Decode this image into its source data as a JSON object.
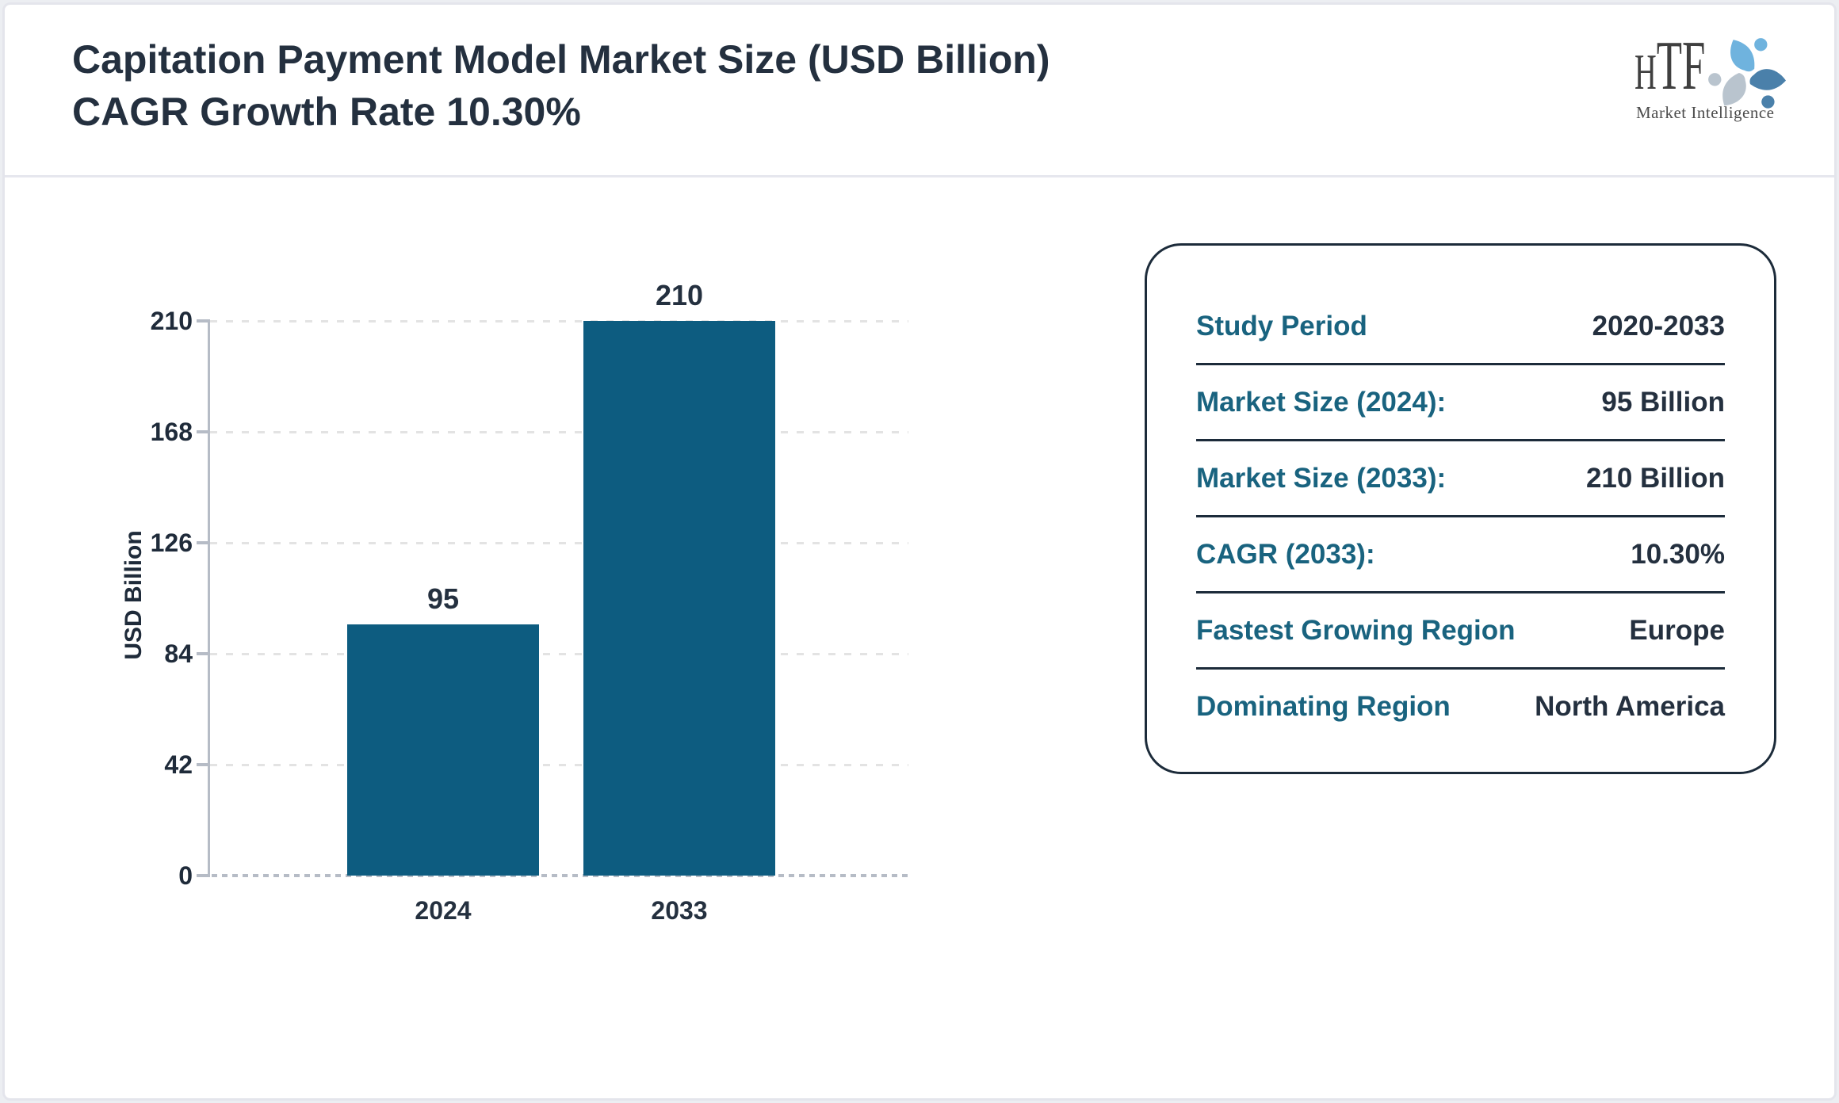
{
  "header": {
    "title": "Capitation Payment Model Market Size (USD Billion) CAGR Growth Rate 10.30%"
  },
  "logo": {
    "text": "HTF",
    "subtext": "Market Intelligence",
    "colors": {
      "figure_top": "#6fb3de",
      "figure_right": "#4a80aa",
      "figure_left": "#b9c4ce",
      "text": "#3f3f3f"
    }
  },
  "chart_data": {
    "type": "bar",
    "categories": [
      "2024",
      "2033"
    ],
    "values": [
      95,
      210
    ],
    "data_labels": [
      "95",
      "210"
    ],
    "title": "",
    "xlabel": "",
    "ylabel": "USD Billion",
    "ylim": [
      0,
      210
    ],
    "yticks": [
      0,
      42,
      84,
      126,
      168,
      210
    ],
    "grid": "horizontal-dashed",
    "legend": "none",
    "bar_color": "#0d5c80"
  },
  "info_panel": {
    "rows": [
      {
        "label": "Study Period",
        "value": "2020-2033"
      },
      {
        "label": "Market Size (2024):",
        "value": "95 Billion"
      },
      {
        "label": "Market Size (2033):",
        "value": "210 Billion"
      },
      {
        "label": "CAGR (2033):",
        "value": "10.30%"
      },
      {
        "label": "Fastest Growing Region",
        "value": "Europe"
      },
      {
        "label": "Dominating Region",
        "value": "North America"
      }
    ]
  },
  "colors": {
    "bar": "#0d5c80",
    "label_teal": "#19637f",
    "value_navy": "#24303f",
    "axis_gray": "#b6bcc6",
    "grid_gray": "#e3e3e3",
    "frame_border": "#e4e5ec"
  }
}
